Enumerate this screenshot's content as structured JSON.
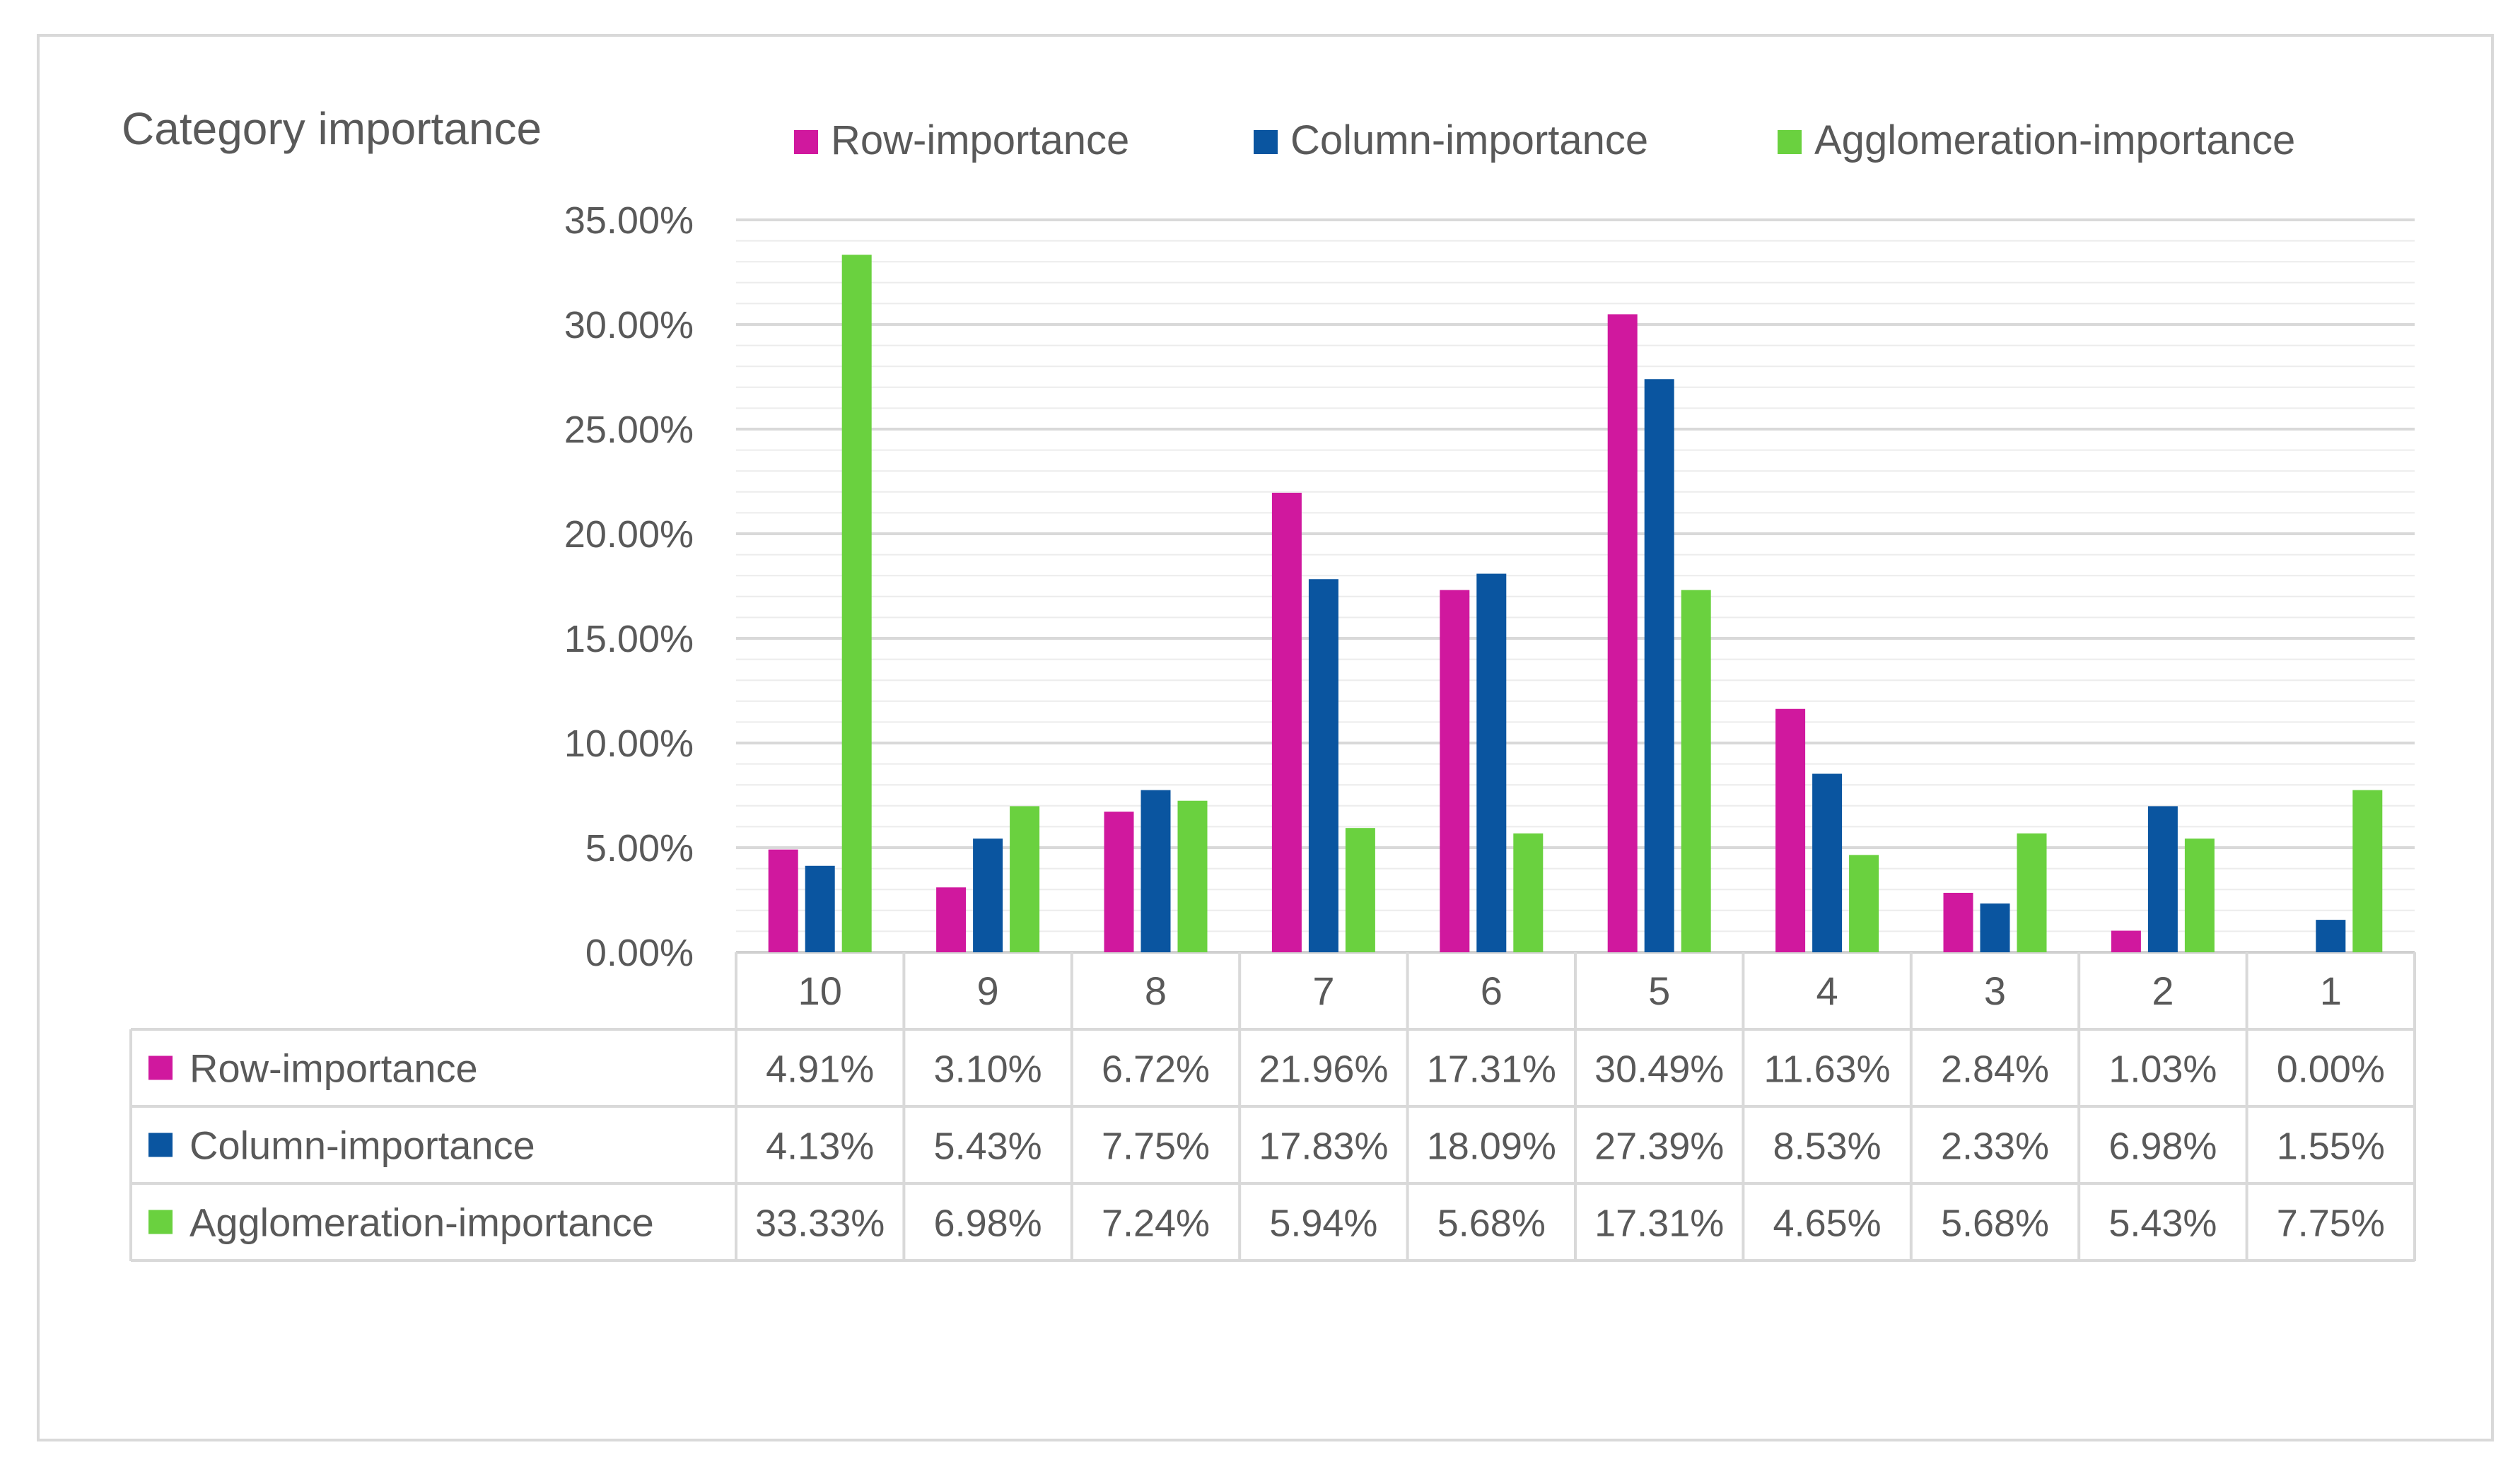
{
  "chart_data": {
    "type": "bar",
    "title": "Category importance",
    "categories": [
      "10",
      "9",
      "8",
      "7",
      "6",
      "5",
      "4",
      "3",
      "2",
      "1"
    ],
    "series": [
      {
        "name": "Row-importance",
        "color": "#d0189e",
        "values": [
          4.91,
          3.1,
          6.72,
          21.96,
          17.31,
          30.49,
          11.63,
          2.84,
          1.03,
          0.0
        ],
        "labels": [
          "4.91%",
          "3.10%",
          "6.72%",
          "21.96%",
          "17.31%",
          "30.49%",
          "11.63%",
          "2.84%",
          "1.03%",
          "0.00%"
        ]
      },
      {
        "name": "Column-importance",
        "color": "#0a55a0",
        "values": [
          4.13,
          5.43,
          7.75,
          17.83,
          18.09,
          27.39,
          8.53,
          2.33,
          6.98,
          1.55
        ],
        "labels": [
          "4.13%",
          "5.43%",
          "7.75%",
          "17.83%",
          "18.09%",
          "27.39%",
          "8.53%",
          "2.33%",
          "6.98%",
          "1.55%"
        ]
      },
      {
        "name": "Agglomeration-importance",
        "color": "#6ad13f",
        "values": [
          33.33,
          6.98,
          7.24,
          5.94,
          5.68,
          17.31,
          4.65,
          5.68,
          5.43,
          7.75
        ],
        "labels": [
          "33.33%",
          "6.98%",
          "7.24%",
          "5.94%",
          "5.68%",
          "17.31%",
          "4.65%",
          "5.68%",
          "5.43%",
          "7.75%"
        ]
      }
    ],
    "ylim": [
      0,
      35
    ],
    "yticks": [
      0,
      5,
      10,
      15,
      20,
      25,
      30,
      35
    ],
    "ytick_labels": [
      "0.00%",
      "5.00%",
      "10.00%",
      "15.00%",
      "20.00%",
      "25.00%",
      "30.00%",
      "35.00%"
    ],
    "minor_gridlines": true,
    "legend_position": "top",
    "data_table": true
  }
}
